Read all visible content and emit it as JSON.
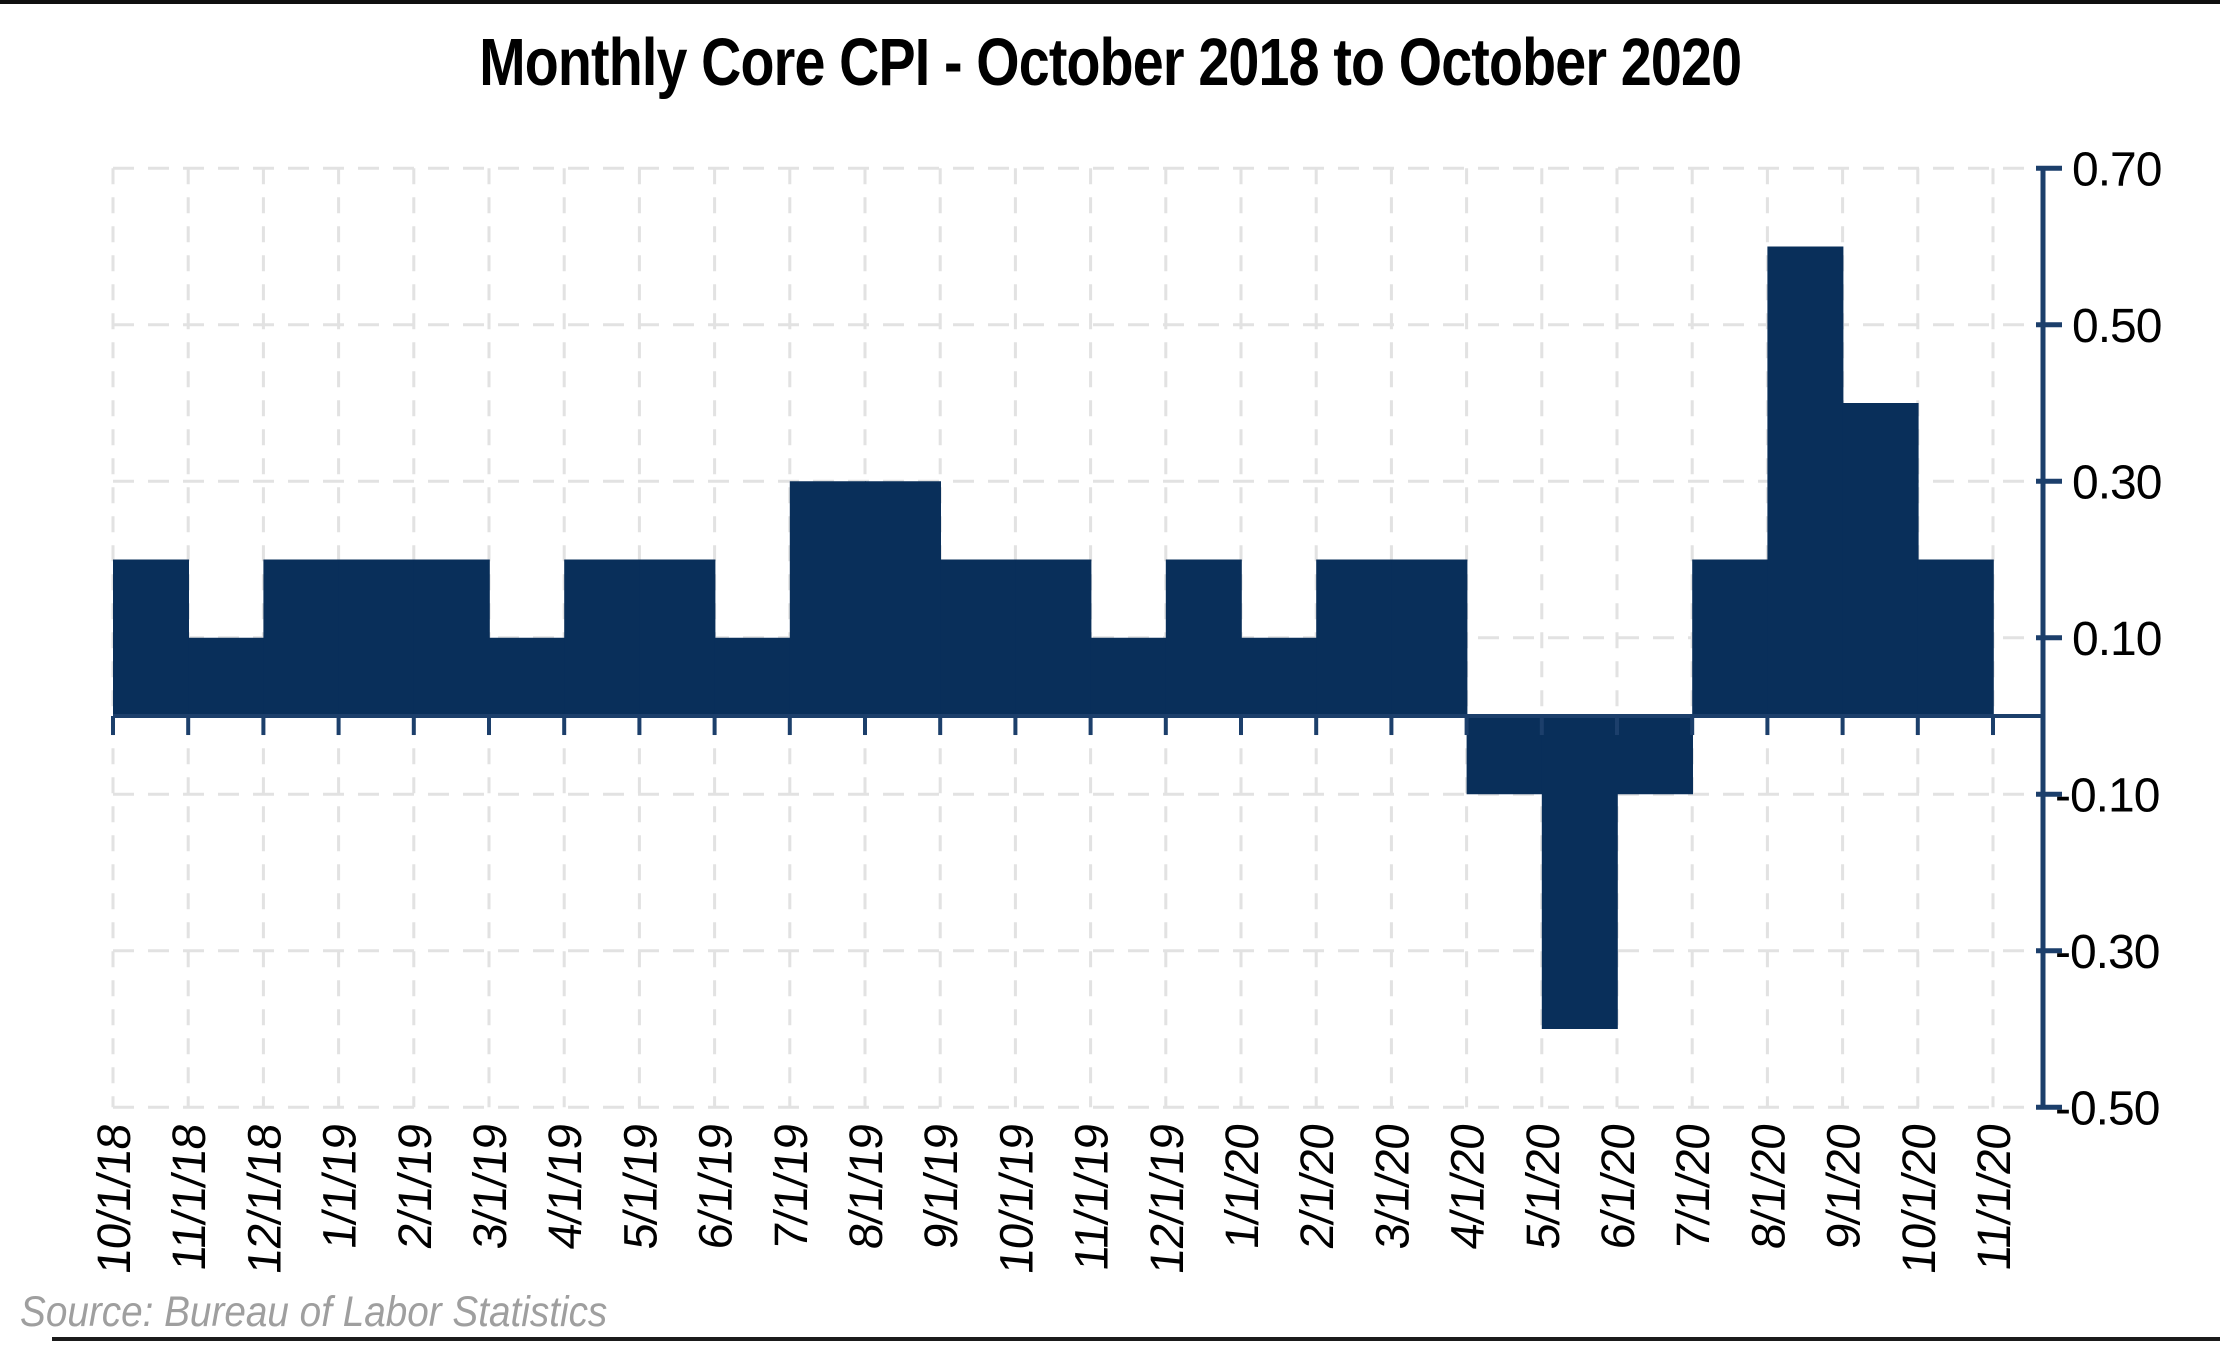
{
  "page": {
    "title": "Monthly Core CPI - October 2018 to October 2020",
    "source_note": "Source: Bureau of Labor Statistics"
  },
  "chart_data": {
    "type": "bar",
    "title": "Monthly Core CPI - October 2018 to October 2020",
    "xlabel": "",
    "ylabel": "",
    "categories": [
      "10/1/18",
      "11/1/18",
      "12/1/18",
      "1/1/19",
      "2/1/19",
      "3/1/19",
      "4/1/19",
      "5/1/19",
      "6/1/19",
      "7/1/19",
      "8/1/19",
      "9/1/19",
      "10/1/19",
      "11/1/19",
      "12/1/19",
      "1/1/20",
      "2/1/20",
      "3/1/20",
      "4/1/20",
      "5/1/20",
      "6/1/20",
      "7/1/20",
      "8/1/20",
      "9/1/20",
      "10/1/20",
      "11/1/20"
    ],
    "values": [
      0.2,
      0.1,
      0.2,
      0.2,
      0.2,
      0.1,
      0.2,
      0.2,
      0.1,
      0.3,
      0.3,
      0.2,
      0.2,
      0.1,
      0.2,
      0.1,
      0.2,
      0.2,
      -0.1,
      -0.4,
      -0.1,
      0.2,
      0.6,
      0.4,
      0.2,
      null
    ],
    "ylim": [
      -0.5,
      0.7
    ],
    "y_ticks": [
      0.7,
      0.5,
      0.3,
      0.1,
      -0.1,
      -0.3,
      -0.5
    ],
    "y_tick_labels": [
      "0.70",
      "0.50",
      "0.30",
      "0.10",
      "-0.10",
      "-0.30",
      "-0.50"
    ],
    "y_axis_side": "right",
    "grid": "dashed",
    "legend": "none",
    "bar_color": "#092F5A",
    "axis_color": "#1C3F6B",
    "grid_color": "#E2E2E2",
    "label_color": "#000000",
    "source_color": "#9F9F9F",
    "source": "Source: Bureau of Labor Statistics"
  }
}
